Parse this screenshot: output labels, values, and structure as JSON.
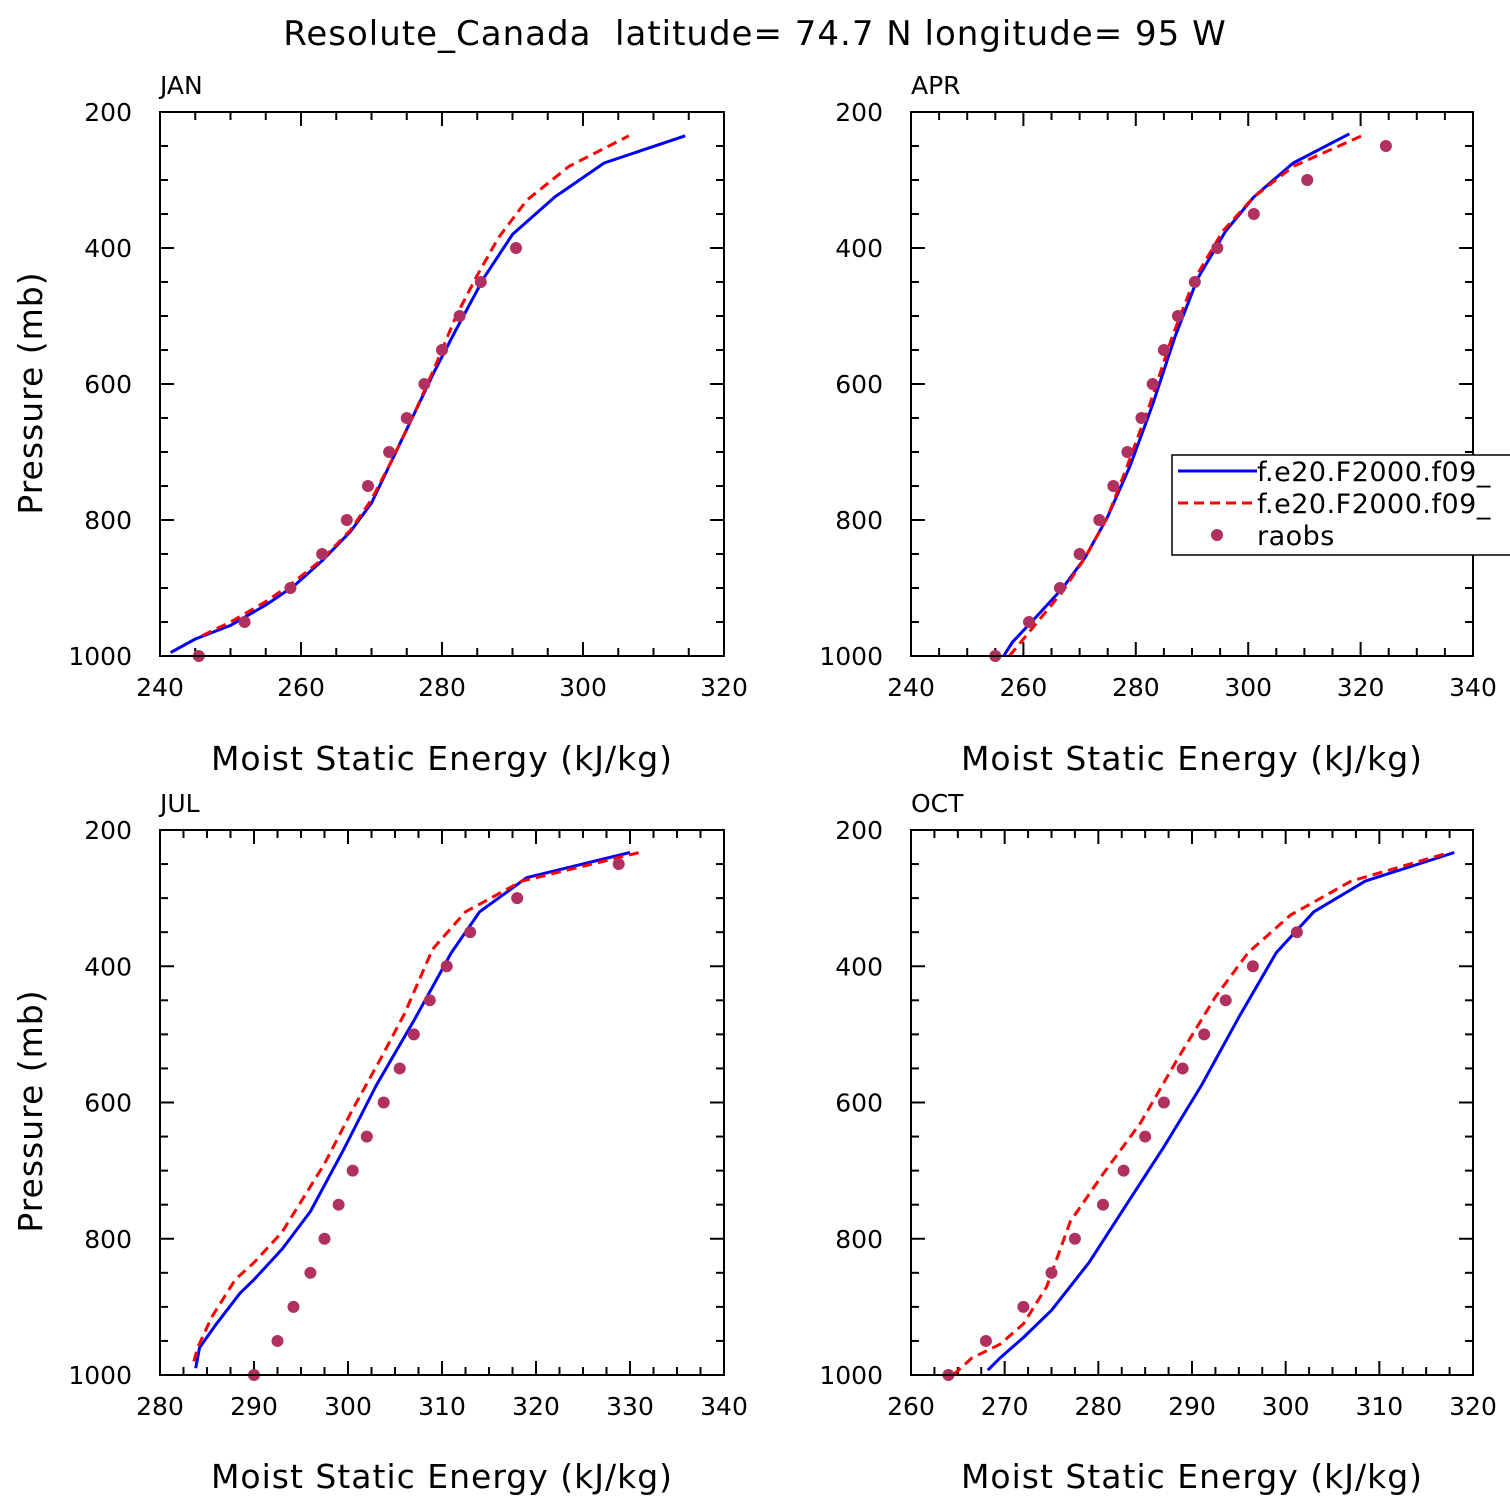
{
  "figure_title": "Resolute_Canada  latitude= 74.7 N longitude= 95 W",
  "colors": {
    "model_solid": "#0000ff",
    "model_dashed": "#ff0000",
    "raobs": "#b03060",
    "axes": "#000000"
  },
  "legend": {
    "entries": [
      {
        "label": "f.e20.F2000.f09_",
        "style": "solid",
        "color": "#0000ff"
      },
      {
        "label": "f.e20.F2000.f09_",
        "style": "dashed",
        "color": "#ff0000"
      },
      {
        "label": "raobs",
        "style": "marker",
        "color": "#b03060"
      }
    ]
  },
  "chart_data": [
    {
      "type": "line",
      "panel": "JAN",
      "xlabel": "Moist Static Energy (kJ/kg)",
      "ylabel": "Pressure (mb)",
      "xlim": [
        240,
        320
      ],
      "ylim": [
        1000,
        200
      ],
      "xticks": [
        240,
        260,
        280,
        300,
        320
      ],
      "yticks": [
        200,
        400,
        600,
        800,
        1000
      ],
      "x_minor_step": 5,
      "y_minor_step": 50,
      "series": [
        {
          "name": "f.e20.F2000.f09_",
          "style": "solid",
          "x": [
            241.5,
            245,
            250,
            255,
            259,
            263,
            267,
            270,
            273,
            276,
            279,
            282,
            286,
            290,
            296,
            303,
            314.5
          ],
          "y": [
            995,
            975,
            955,
            925,
            897,
            860,
            817,
            775,
            710,
            645,
            580,
            520,
            443,
            380,
            325,
            275,
            235
          ]
        },
        {
          "name": "f.e20.F2000.f09_",
          "style": "dashed",
          "x": [
            246,
            250,
            255,
            258.5,
            263,
            267,
            270,
            273,
            276,
            279,
            282,
            285,
            288,
            292,
            298,
            306.5
          ],
          "y": [
            970,
            950,
            920,
            895,
            858,
            815,
            770,
            710,
            645,
            575,
            500,
            440,
            385,
            330,
            280,
            235
          ]
        },
        {
          "name": "raobs",
          "style": "marker",
          "x": [
            245.5,
            252,
            258.5,
            263,
            266.5,
            269.5,
            272.5,
            275,
            277.5,
            280,
            282.5,
            285.5,
            290.5
          ],
          "y": [
            1000,
            950,
            900,
            850,
            800,
            750,
            700,
            650,
            600,
            550,
            500,
            450,
            400
          ]
        }
      ]
    },
    {
      "type": "line",
      "panel": "APR",
      "xlabel": "Moist Static Energy (kJ/kg)",
      "ylabel": "",
      "xlim": [
        240,
        340
      ],
      "ylim": [
        1000,
        200
      ],
      "xticks": [
        240,
        260,
        280,
        300,
        320,
        340
      ],
      "yticks": [
        200,
        400,
        600,
        800,
        1000
      ],
      "x_minor_step": 5,
      "y_minor_step": 50,
      "series": [
        {
          "name": "f.e20.F2000.f09_",
          "style": "solid",
          "x": [
            256.5,
            258,
            262,
            267,
            271,
            275,
            279,
            283,
            287,
            291,
            296,
            301,
            308,
            318
          ],
          "y": [
            1000,
            980,
            945,
            900,
            855,
            795,
            720,
            630,
            530,
            445,
            375,
            325,
            275,
            232
          ]
        },
        {
          "name": "f.e20.F2000.f09_",
          "style": "dashed",
          "x": [
            257.5,
            262,
            267,
            271,
            275,
            278.5,
            282.5,
            286.5,
            290.5,
            295.5,
            301,
            308,
            321
          ],
          "y": [
            1000,
            955,
            905,
            855,
            795,
            720,
            630,
            530,
            445,
            375,
            325,
            280,
            232
          ]
        },
        {
          "name": "raobs",
          "style": "marker",
          "x": [
            255,
            261,
            266.5,
            270,
            273.5,
            276,
            278.5,
            281,
            283,
            285,
            287.5,
            290.5,
            294.5,
            301,
            310.5,
            324.5
          ],
          "y": [
            1000,
            950,
            900,
            850,
            800,
            750,
            700,
            650,
            600,
            550,
            500,
            450,
            400,
            350,
            300,
            250
          ]
        }
      ]
    },
    {
      "type": "line",
      "panel": "JUL",
      "xlabel": "Moist Static Energy (kJ/kg)",
      "ylabel": "Pressure (mb)",
      "xlim": [
        280,
        340
      ],
      "ylim": [
        1000,
        200
      ],
      "xticks": [
        280,
        290,
        300,
        310,
        320,
        330,
        340
      ],
      "yticks": [
        200,
        400,
        600,
        800,
        1000
      ],
      "x_minor_step": 2.5,
      "y_minor_step": 50,
      "series": [
        {
          "name": "f.e20.F2000.f09_",
          "style": "solid",
          "x": [
            283.8,
            284.2,
            286,
            288.5,
            290,
            293,
            296,
            299.5,
            303,
            307,
            311,
            314,
            319,
            330
          ],
          "y": [
            990,
            960,
            925,
            880,
            860,
            815,
            760,
            670,
            575,
            480,
            380,
            320,
            270,
            233
          ]
        },
        {
          "name": "f.e20.F2000.f09_",
          "style": "dashed",
          "x": [
            283.6,
            284,
            285.5,
            288,
            290,
            293,
            297.5,
            300.5,
            303.5,
            306,
            309,
            312.5,
            318.5,
            331
          ],
          "y": [
            980,
            960,
            915,
            860,
            835,
            790,
            690,
            610,
            535,
            470,
            375,
            320,
            275,
            233
          ]
        },
        {
          "name": "raobs",
          "style": "marker",
          "x": [
            290,
            292.5,
            294.2,
            296,
            297.5,
            299,
            300.5,
            302,
            303.8,
            305.5,
            307,
            308.7,
            310.5,
            313,
            318,
            328.8
          ],
          "y": [
            1000,
            950,
            900,
            850,
            800,
            750,
            700,
            650,
            600,
            550,
            500,
            450,
            400,
            350,
            300,
            250
          ]
        }
      ]
    },
    {
      "type": "line",
      "panel": "OCT",
      "xlabel": "Moist Static Energy (kJ/kg)",
      "ylabel": "",
      "xlim": [
        260,
        320
      ],
      "ylim": [
        1000,
        200
      ],
      "xticks": [
        260,
        270,
        280,
        290,
        300,
        310,
        320
      ],
      "yticks": [
        200,
        400,
        600,
        800,
        1000
      ],
      "x_minor_step": 2.5,
      "y_minor_step": 50,
      "series": [
        {
          "name": "f.e20.F2000.f09_",
          "style": "solid",
          "x": [
            268.2,
            269.5,
            272,
            275,
            279,
            283,
            287,
            291,
            295,
            299,
            303,
            308.5,
            318
          ],
          "y": [
            993,
            975,
            945,
            905,
            835,
            750,
            665,
            575,
            475,
            380,
            320,
            275,
            233
          ]
        },
        {
          "name": "f.e20.F2000.f09_",
          "style": "dashed",
          "x": [
            264.5,
            266.5,
            269.5,
            272,
            274.5,
            277,
            280.5,
            284.5,
            288.5,
            292.5,
            296,
            300.5,
            307,
            317.5
          ],
          "y": [
            1000,
            975,
            955,
            925,
            870,
            775,
            705,
            630,
            535,
            445,
            380,
            325,
            275,
            233
          ]
        },
        {
          "name": "raobs",
          "style": "marker",
          "x": [
            264,
            268,
            272,
            275,
            277.5,
            280.5,
            282.7,
            285,
            287,
            289,
            291.3,
            293.6,
            296.5,
            301.2
          ],
          "y": [
            1000,
            950,
            900,
            850,
            800,
            750,
            700,
            650,
            600,
            550,
            500,
            450,
            400,
            350
          ]
        }
      ]
    }
  ]
}
